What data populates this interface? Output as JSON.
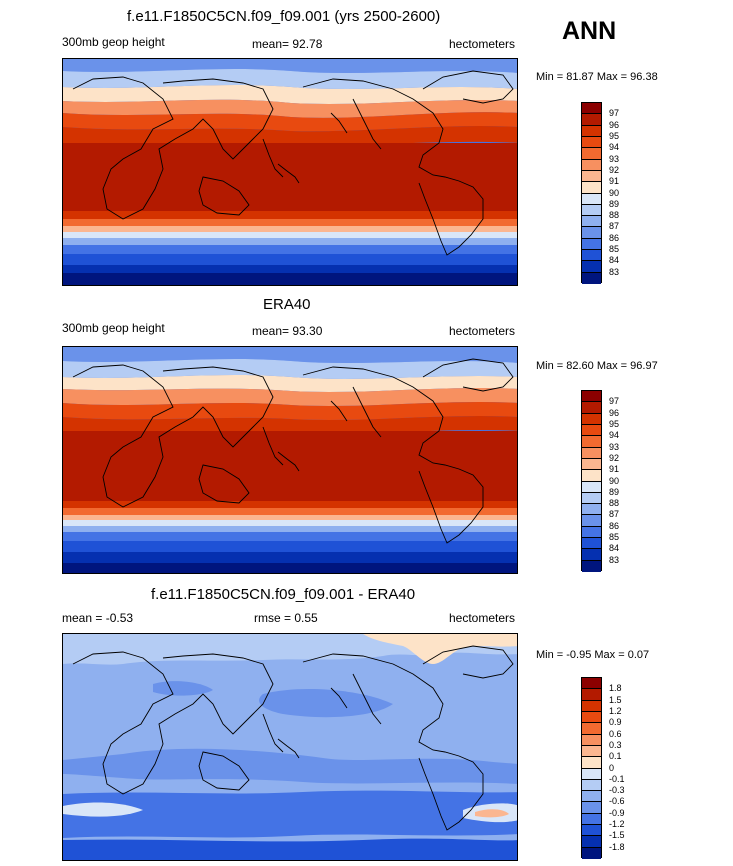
{
  "header": {
    "season": "ANN"
  },
  "panels": [
    {
      "title": "f.e11.F1850C5CN.f09_f09.001 (yrs 2500-2600)",
      "left_label": "300mb geop height",
      "center_label": "mean=  92.78",
      "units": "hectometers",
      "minmax": "Min =  81.87 Max =  96.38",
      "colorbar": {
        "labels": [
          "97",
          "96",
          "95",
          "94",
          "93",
          "92",
          "91",
          "90",
          "89",
          "88",
          "87",
          "86",
          "85",
          "84",
          "83"
        ],
        "colors": [
          "#8b0000",
          "#b31a00",
          "#d43300",
          "#e84a10",
          "#f26a30",
          "#f79060",
          "#fbb690",
          "#fde3c8",
          "#d9e6f8",
          "#b4ccf4",
          "#8fb0ef",
          "#6a92ea",
          "#4473e5",
          "#1f52d6",
          "#0530b0",
          "#00157e"
        ]
      }
    },
    {
      "title": "ERA40",
      "left_label": "300mb geop height",
      "center_label": "mean=  93.30",
      "units": "hectometers",
      "minmax": "Min =  82.60 Max =  96.97",
      "colorbar": {
        "labels": [
          "97",
          "96",
          "95",
          "94",
          "93",
          "92",
          "91",
          "90",
          "89",
          "88",
          "87",
          "86",
          "85",
          "84",
          "83"
        ],
        "colors": [
          "#8b0000",
          "#b31a00",
          "#d43300",
          "#e84a10",
          "#f26a30",
          "#f79060",
          "#fbb690",
          "#fde3c8",
          "#d9e6f8",
          "#b4ccf4",
          "#8fb0ef",
          "#6a92ea",
          "#4473e5",
          "#1f52d6",
          "#0530b0",
          "#00157e"
        ]
      }
    },
    {
      "title": "f.e11.F1850C5CN.f09_f09.001 - ERA40",
      "left_label": "mean =  -0.53",
      "center_label": "rmse =   0.55",
      "units": "hectometers",
      "minmax": "Min =  -0.95 Max =   0.07",
      "colorbar": {
        "labels": [
          "1.8",
          "1.5",
          "1.2",
          "0.9",
          "0.6",
          "0.3",
          "0.1",
          "0",
          "-0.1",
          "-0.3",
          "-0.6",
          "-0.9",
          "-1.2",
          "-1.5",
          "-1.8"
        ],
        "colors": [
          "#8b0000",
          "#b31a00",
          "#d43300",
          "#e84a10",
          "#f26a30",
          "#f79060",
          "#fbb690",
          "#fde3c8",
          "#d9e6f8",
          "#b4ccf4",
          "#8fb0ef",
          "#6a92ea",
          "#4473e5",
          "#1f52d6",
          "#0530b0",
          "#00157e"
        ]
      }
    }
  ]
}
